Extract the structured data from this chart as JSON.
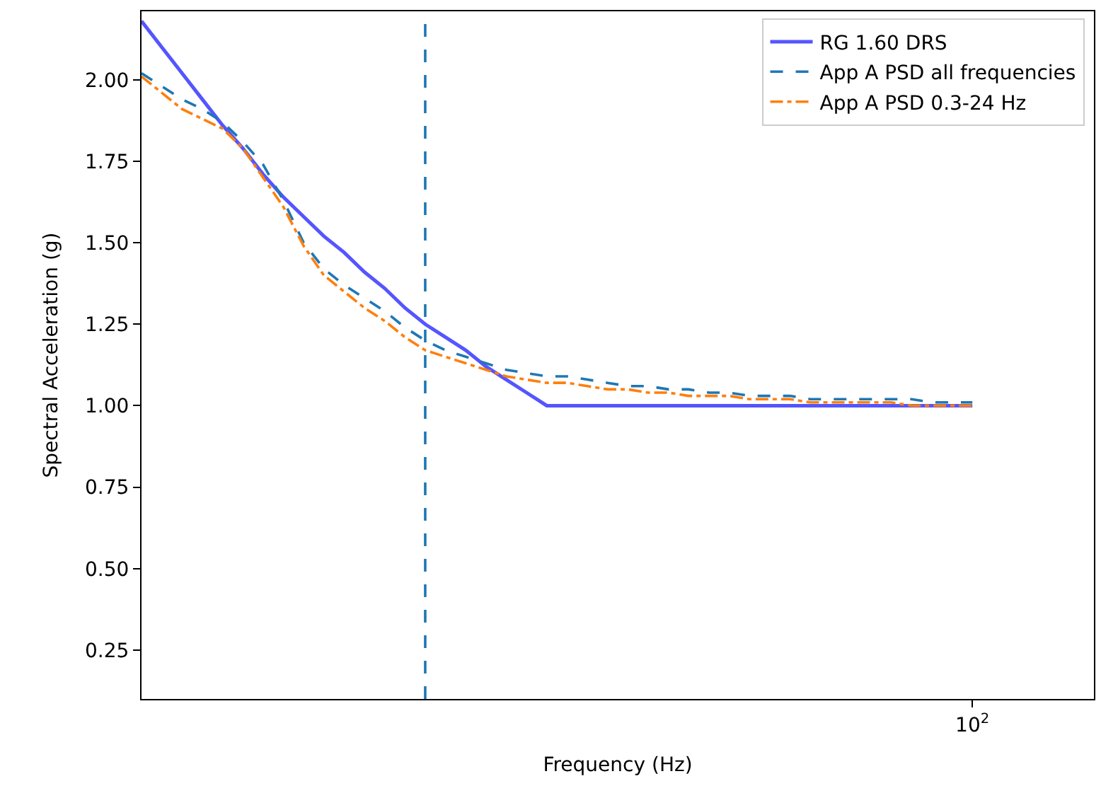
{
  "chart_data": {
    "type": "line",
    "xlabel": "Frequency (Hz)",
    "ylabel": "Spectral Acceleration (g)",
    "legend": "top right",
    "categories": [
      null,
      null,
      null,
      null,
      null,
      null,
      null,
      null,
      null,
      null,
      null,
      null,
      null,
      null,
      null,
      null,
      null,
      null,
      null,
      null,
      null,
      null,
      null,
      null,
      null,
      null,
      null,
      null,
      null,
      null,
      null,
      null,
      null,
      null,
      null,
      null,
      null,
      null,
      null,
      null,
      null,
      "10$^{2}$",
      null,
      null,
      null,
      null,
      null,
      null
    ],
    "ylim": [
      0.1,
      2.21
    ],
    "yticks": [
      {
        "value": 0.25,
        "label": "0.25"
      },
      {
        "value": 0.5,
        "label": "0.50"
      },
      {
        "value": 0.75,
        "label": "0.75"
      },
      {
        "value": 1.0,
        "label": "1.00"
      },
      {
        "value": 1.25,
        "label": "1.25"
      },
      {
        "value": 1.5,
        "label": "1.50"
      },
      {
        "value": 1.75,
        "label": "1.75"
      },
      {
        "value": 2.0,
        "label": "2.00"
      }
    ],
    "series": [
      {
        "name": "RG 1.60 DRS",
        "color": "#5555ff",
        "line_style": "solid",
        "values": [
          2.18,
          2.1,
          2.02,
          1.94,
          1.86,
          1.79,
          1.71,
          1.64,
          1.58,
          1.52,
          1.47,
          1.41,
          1.36,
          1.3,
          1.25,
          1.21,
          1.17,
          1.12,
          1.08,
          1.04,
          1.0,
          1.0,
          1.0,
          1.0,
          1.0,
          1.0,
          1.0,
          1.0,
          1.0,
          1.0,
          1.0,
          1.0,
          1.0,
          1.0,
          1.0,
          1.0,
          1.0,
          1.0,
          1.0,
          1.0,
          1.0,
          1.0,
          null,
          null,
          null,
          null,
          null,
          null
        ]
      },
      {
        "name": "App A PSD all frequencies",
        "color": "#1f77b4",
        "line_style": "dashed",
        "values": [
          2.02,
          1.98,
          1.94,
          1.91,
          1.87,
          1.81,
          1.74,
          1.63,
          1.5,
          1.42,
          1.37,
          1.33,
          1.29,
          1.24,
          1.2,
          1.17,
          1.15,
          1.13,
          1.11,
          1.1,
          1.09,
          1.09,
          1.08,
          1.07,
          1.06,
          1.06,
          1.05,
          1.05,
          1.04,
          1.04,
          1.03,
          1.03,
          1.03,
          1.02,
          1.02,
          1.02,
          1.02,
          1.02,
          1.02,
          1.01,
          1.01,
          1.01,
          null,
          null,
          null,
          null,
          null,
          null
        ]
      },
      {
        "name": "App A PSD 0.3-24 Hz",
        "color": "#ff7f0e",
        "line_style": "dashdot",
        "values": [
          2.01,
          1.96,
          1.91,
          1.88,
          1.85,
          1.79,
          1.7,
          1.61,
          1.49,
          1.4,
          1.35,
          1.3,
          1.26,
          1.21,
          1.17,
          1.15,
          1.13,
          1.11,
          1.09,
          1.08,
          1.07,
          1.07,
          1.06,
          1.05,
          1.05,
          1.04,
          1.04,
          1.03,
          1.03,
          1.03,
          1.02,
          1.02,
          1.02,
          1.01,
          1.01,
          1.01,
          1.01,
          1.01,
          1.0,
          1.0,
          1.0,
          1.0,
          null,
          null,
          null,
          null,
          null,
          null
        ]
      }
    ]
  }
}
